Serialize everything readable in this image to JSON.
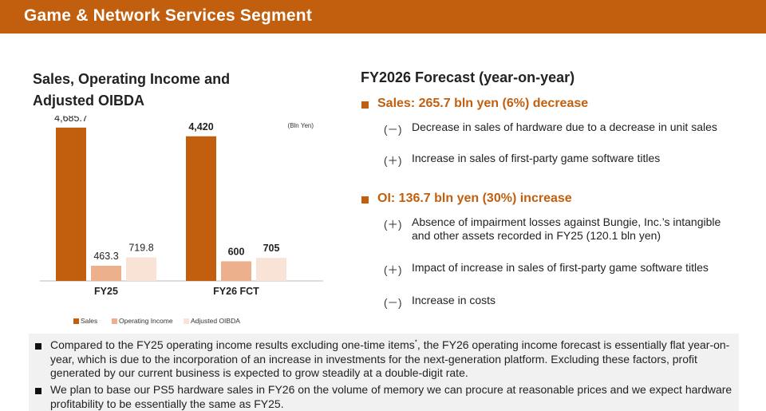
{
  "header": {
    "title": "Game & Network Services Segment"
  },
  "left_title": "Sales, Operating Income and Adjusted OIBDA",
  "chart_data": {
    "type": "bar",
    "unit": "(Bln Yen)",
    "categories": [
      "FY25",
      "FY26 FCT"
    ],
    "series": [
      {
        "name": "Sales",
        "values": [
          4685.7,
          4420
        ],
        "labels": [
          "4,685.7",
          "4,420"
        ],
        "color": "#c25f0f"
      },
      {
        "name": "Operating Income",
        "values": [
          463.3,
          600
        ],
        "labels": [
          "463.3",
          "600"
        ],
        "color": "#ecb08d"
      },
      {
        "name": "Adjusted OIBDA",
        "values": [
          719.8,
          705
        ],
        "labels": [
          "719.8",
          "705"
        ],
        "color": "#f9e3d6"
      }
    ],
    "ylim": [
      0,
      5000
    ],
    "legend_position": "bottom",
    "label_bold_categories": [
      "FY26 FCT"
    ]
  },
  "forecast": {
    "title": "FY2026 Forecast (year-on-year)",
    "sales_heading": "Sales: 265.7 bln yen (6%) decrease",
    "sales_items": [
      {
        "symbol": "(－)",
        "text": "Decrease in sales of hardware due to a decrease in unit sales"
      },
      {
        "symbol": "(＋)",
        "text": "Increase in sales of first-party game software titles"
      }
    ],
    "oi_heading": "OI: 136.7 bln yen (30%) increase",
    "oi_items": [
      {
        "symbol": "(＋)",
        "text": "Absence of impairment losses against Bungie, Inc.’s intangible and other assets recorded in FY25 (120.1 bln yen)"
      },
      {
        "symbol": "(＋)",
        "text": "Impact of increase in sales of first-party game software titles"
      },
      {
        "symbol": "(－)",
        "text": "Increase in costs"
      }
    ]
  },
  "notes": {
    "note1_pre": "Compared to the FY25 operating income results excluding one-time items",
    "note1_sup": "*",
    "note1_post": ", the FY26 operating income forecast is essentially flat year-on-year, which is due to the incorporation of an increase in investments for the next-generation platform. Excluding these factors, profit generated by our current business is expected to grow steadily at a double-digit rate.",
    "note2": "We plan to base our PS5 hardware sales in FY26 on the volume of memory we can procure at reasonable prices and we expect hardware profitability to be essentially the same as FY25."
  }
}
